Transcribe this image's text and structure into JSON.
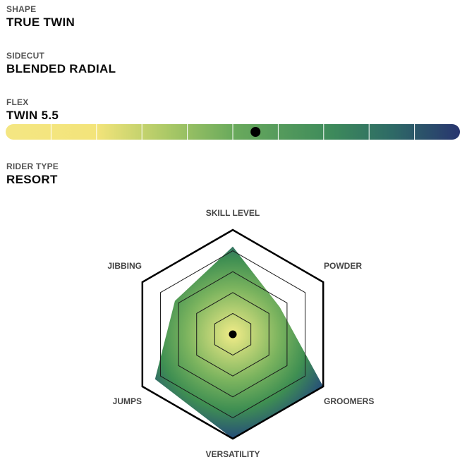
{
  "specs": {
    "shape": {
      "label": "SHAPE",
      "value": "TRUE TWIN"
    },
    "sidecut": {
      "label": "SIDECUT",
      "value": "BLENDED RADIAL"
    },
    "flex": {
      "label": "FLEX",
      "value": "TWIN 5.5",
      "scale_segments": 10,
      "position": 5.5,
      "gradient_colors": [
        "#f4e683",
        "#f3e47a",
        "#a9c866",
        "#6aaa5c",
        "#3d8a5b",
        "#2e6a66",
        "#28356f"
      ]
    },
    "rider_type": {
      "label": "RIDER TYPE",
      "value": "RESORT"
    }
  },
  "chart_data": {
    "type": "radar",
    "axes": [
      "SKILL LEVEL",
      "POWDER",
      "GROOMERS",
      "VERSATILITY",
      "JUMPS",
      "JIBBING"
    ],
    "scale_max": 5,
    "rings": 4,
    "values": [
      4.2,
      2.6,
      5,
      5,
      4.3,
      3.2
    ],
    "fill_colors": [
      "#f1ec88",
      "#7ab35e",
      "#3f8f52",
      "#264d7a"
    ],
    "outline_color": "#000000"
  }
}
